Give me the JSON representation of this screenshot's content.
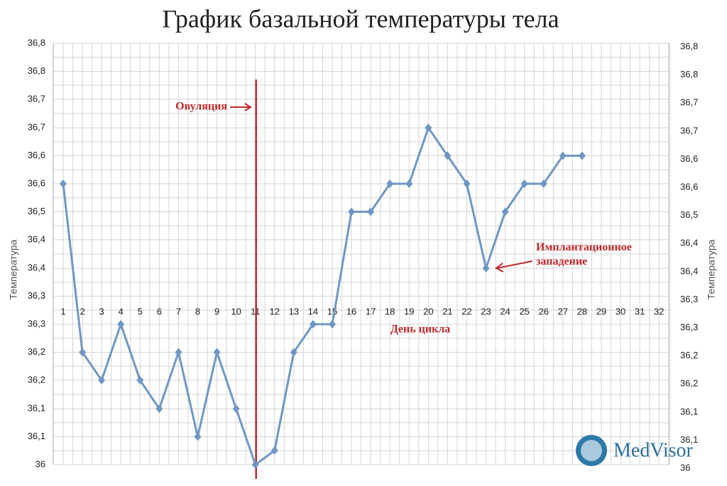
{
  "chart_data": {
    "type": "line",
    "title": "График базальной температуры тела",
    "x_label": "День цикла",
    "y_label": "Температура",
    "brand": "MedVisor",
    "annotations": [
      "Овуляция",
      "Имплантационное западение"
    ],
    "categories": [
      "1",
      "2",
      "3",
      "4",
      "5",
      "6",
      "7",
      "8",
      "9",
      "10",
      "11",
      "12",
      "13",
      "14",
      "15",
      "16",
      "17",
      "18",
      "19",
      "20",
      "21",
      "22",
      "23",
      "24",
      "25",
      "26",
      "27",
      "28",
      "29",
      "30",
      "31",
      "32"
    ],
    "series": [
      {
        "name": "Температура",
        "color": "#6f97c4",
        "values": [
          36.552,
          36.221,
          36.166,
          36.276,
          36.166,
          36.11,
          36.221,
          36.055,
          36.221,
          36.11,
          36,
          36.028,
          36.221,
          36.276,
          36.276,
          36.497,
          36.497,
          36.552,
          36.552,
          36.662,
          36.607,
          36.552,
          36.386,
          36.497,
          36.552,
          36.552,
          36.607,
          36.607,
          null,
          null,
          null,
          null
        ]
      }
    ],
    "ylim": [
      36,
      36.828
    ],
    "yticks": [
      {
        "value": 36,
        "label": "36"
      },
      {
        "value": 36.055,
        "label": "36,1"
      },
      {
        "value": 36.11,
        "label": "36,1"
      },
      {
        "value": 36.166,
        "label": "36,2"
      },
      {
        "value": 36.221,
        "label": "36,2"
      },
      {
        "value": 36.276,
        "label": "36,3"
      },
      {
        "value": 36.331,
        "label": "36,3"
      },
      {
        "value": 36.386,
        "label": "36,4"
      },
      {
        "value": 36.442,
        "label": "36,4"
      },
      {
        "value": 36.497,
        "label": "36,5"
      },
      {
        "value": 36.552,
        "label": "36,6"
      },
      {
        "value": 36.607,
        "label": "36,6"
      },
      {
        "value": 36.662,
        "label": "36,7"
      },
      {
        "value": 36.718,
        "label": "36,7"
      },
      {
        "value": 36.773,
        "label": "36,8"
      },
      {
        "value": 36.828,
        "label": "36,8"
      }
    ],
    "grid": true
  }
}
